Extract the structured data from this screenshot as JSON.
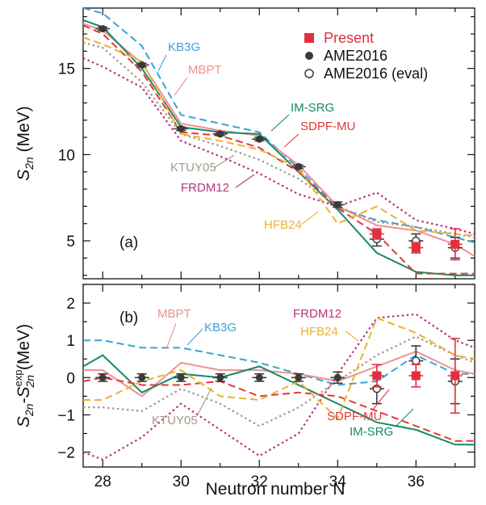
{
  "chart_data": {
    "xlabel": "Neutron number N",
    "xlim": [
      27.5,
      37.5
    ],
    "xticks": [
      28,
      30,
      32,
      34,
      36
    ],
    "legend": {
      "placement": "top-right",
      "entries": [
        {
          "label": "Present",
          "marker": "filled-square",
          "color": "#e03040"
        },
        {
          "label": "AME2016",
          "marker": "filled-circle",
          "color": "#3a3a3a"
        },
        {
          "label": "AME2016 (eval)",
          "marker": "open-circle",
          "color": "#3a3a3a"
        }
      ]
    },
    "colors": {
      "KB3G": "#3aa3d6",
      "MBPT": "#f08f8f",
      "IM-SRG": "#138a68",
      "SDPF-MU": "#e03a3a",
      "KTUY05": "#a39a88",
      "FRDM12": "#b8337a",
      "HFB24": "#ecb22e",
      "Present": "#e03040",
      "AME2016": "#3a3a3a"
    },
    "panels": [
      {
        "id": "a",
        "type": "line",
        "tag": "(a)",
        "ylabel_main": "S",
        "ylabel_sub": "2n",
        "ylabel_unit": " (MeV)",
        "ylim": [
          2.8,
          18.5
        ],
        "yticks": [
          5,
          10,
          15
        ],
        "series": [
          {
            "name": "KB3G",
            "style": "dashed",
            "x": [
              27.5,
              28,
              29,
              30,
              31,
              32,
              33,
              34,
              35,
              36,
              37,
              37.5
            ],
            "y": [
              18.5,
              18.2,
              16.3,
              12.3,
              11.8,
              11.3,
              9.2,
              6.9,
              6.2,
              5.8,
              5.2,
              4.9
            ]
          },
          {
            "name": "MBPT",
            "style": "solid",
            "x": [
              27.5,
              28,
              29,
              30,
              31,
              32,
              33,
              34,
              35,
              36,
              37,
              37.5
            ],
            "y": [
              17.6,
              17.2,
              15.3,
              11.8,
              11.4,
              11.1,
              9.4,
              7.0,
              5.9,
              5.6,
              4.8,
              4.1
            ]
          },
          {
            "name": "IM-SRG",
            "style": "solid",
            "x": [
              27.5,
              28,
              29,
              30,
              31,
              32,
              33,
              34,
              35,
              36,
              37,
              37.5
            ],
            "y": [
              17.8,
              17.4,
              15.0,
              11.6,
              11.3,
              11.2,
              9.0,
              6.8,
              4.3,
              3.2,
              3.0,
              3.0
            ]
          },
          {
            "name": "SDPF-MU",
            "style": "dashed",
            "x": [
              27.5,
              28,
              29,
              30,
              31,
              32,
              33,
              34,
              35,
              36,
              37,
              37.5
            ],
            "y": [
              17.5,
              17.0,
              14.8,
              11.3,
              11.1,
              10.4,
              9.0,
              6.9,
              5.4,
              3.1,
              3.1,
              3.1
            ]
          },
          {
            "name": "KTUY05",
            "style": "dotted",
            "x": [
              27.5,
              28,
              29,
              30,
              31,
              32,
              33,
              34,
              35,
              36,
              37,
              37.5
            ],
            "y": [
              16.5,
              16.2,
              14.2,
              11.2,
              10.5,
              9.7,
              8.6,
              7.0,
              6.1,
              5.8,
              5.4,
              5.2
            ]
          },
          {
            "name": "FRDM12",
            "style": "dotted",
            "x": [
              27.5,
              28,
              29,
              30,
              31,
              32,
              33,
              34,
              35,
              36,
              37,
              37.5
            ],
            "y": [
              15.6,
              15.1,
              13.9,
              10.8,
              9.9,
              8.9,
              7.7,
              7.0,
              7.8,
              6.2,
              5.7,
              5.4
            ]
          },
          {
            "name": "HFB24",
            "style": "dashed",
            "x": [
              27.5,
              28,
              29,
              30,
              31,
              32,
              33,
              34,
              35,
              36,
              37,
              37.5
            ],
            "y": [
              16.8,
              16.4,
              15.4,
              11.2,
              10.8,
              10.3,
              9.2,
              6.0,
              7.0,
              5.6,
              5.4,
              5.3
            ]
          }
        ],
        "points": {
          "AME2016": [
            {
              "x": 28,
              "y": 17.3,
              "err": 0.1
            },
            {
              "x": 29,
              "y": 15.2,
              "err": 0.1
            },
            {
              "x": 30,
              "y": 11.5,
              "err": 0.1
            },
            {
              "x": 31,
              "y": 11.2,
              "err": 0.1
            },
            {
              "x": 32,
              "y": 10.9,
              "err": 0.1
            },
            {
              "x": 33,
              "y": 9.3,
              "err": 0.1
            },
            {
              "x": 34,
              "y": 7.1,
              "err": 0.15
            }
          ],
          "AME2016 (eval)": [
            {
              "x": 35,
              "y": 5.1,
              "err": 0.4
            },
            {
              "x": 36,
              "y": 5.0,
              "err": 0.4
            },
            {
              "x": 37,
              "y": 4.6,
              "err": 0.6
            }
          ],
          "Present": [
            {
              "x": 35,
              "y": 5.4,
              "err": 0.3
            },
            {
              "x": 36,
              "y": 4.6,
              "err": 0.3
            },
            {
              "x": 37,
              "y": 4.8,
              "err": 0.9
            }
          ]
        },
        "labels": [
          {
            "text": "KB3G",
            "series": "KB3G"
          },
          {
            "text": "MBPT",
            "series": "MBPT"
          },
          {
            "text": "IM-SRG",
            "series": "IM-SRG"
          },
          {
            "text": "SDPF-MU",
            "series": "SDPF-MU"
          },
          {
            "text": "KTUY05",
            "series": "KTUY05"
          },
          {
            "text": "FRDM12",
            "series": "FRDM12"
          },
          {
            "text": "HFB24",
            "series": "HFB24"
          }
        ]
      },
      {
        "id": "b",
        "type": "line",
        "tag": "(b)",
        "ylabel_main": "S",
        "ylabel_sub": "2n",
        "ylabel_mid": "-S",
        "ylabel_sup2": "exp",
        "ylabel_sub2": "2n",
        "ylabel_unit": " (MeV)",
        "ylim": [
          -2.4,
          2.5
        ],
        "yticks": [
          -2,
          -1,
          0,
          1,
          2
        ],
        "series": [
          {
            "name": "KB3G",
            "style": "dashed",
            "x": [
              27.5,
              28,
              29,
              30,
              31,
              32,
              33,
              34,
              35,
              36,
              37,
              37.5
            ],
            "y": [
              1.0,
              1.0,
              0.8,
              0.8,
              0.6,
              0.4,
              0.1,
              -0.2,
              -0.1,
              0.6,
              0.1,
              0.1
            ]
          },
          {
            "name": "MBPT",
            "style": "solid",
            "x": [
              27.5,
              28,
              29,
              30,
              31,
              32,
              33,
              34,
              35,
              36,
              37,
              37.5
            ],
            "y": [
              0.2,
              0.2,
              -0.5,
              0.4,
              0.2,
              0.2,
              0.1,
              -0.1,
              0.3,
              0.7,
              0.2,
              0.1
            ]
          },
          {
            "name": "IM-SRG",
            "style": "solid",
            "x": [
              27.5,
              28,
              29,
              30,
              31,
              32,
              33,
              34,
              35,
              36,
              37,
              37.5
            ],
            "y": [
              0.3,
              0.6,
              -0.4,
              0.1,
              0.0,
              0.3,
              -0.2,
              -0.7,
              -1.2,
              -1.4,
              -1.8,
              -1.8
            ]
          },
          {
            "name": "SDPF-MU",
            "style": "dashed",
            "x": [
              27.5,
              28,
              29,
              30,
              31,
              32,
              33,
              34,
              35,
              36,
              37,
              37.5
            ],
            "y": [
              -0.1,
              0.0,
              -0.2,
              -0.2,
              -0.1,
              -0.5,
              -0.4,
              -0.5,
              -0.9,
              -1.3,
              -1.7,
              -1.7
            ]
          },
          {
            "name": "KTUY05",
            "style": "dotted",
            "x": [
              27.5,
              28,
              29,
              30,
              31,
              32,
              33,
              34,
              35,
              36,
              37,
              37.5
            ],
            "y": [
              -0.8,
              -0.8,
              -0.9,
              -0.3,
              -0.7,
              -1.3,
              -0.8,
              -0.1,
              0.6,
              1.1,
              0.6,
              0.4
            ]
          },
          {
            "name": "FRDM12",
            "style": "dotted",
            "x": [
              27.5,
              28,
              29,
              30,
              31,
              32,
              33,
              34,
              35,
              36,
              37,
              37.5
            ],
            "y": [
              -2.0,
              -2.2,
              -1.6,
              -0.7,
              -1.4,
              -2.1,
              -1.5,
              0.1,
              1.6,
              1.7,
              1.0,
              0.8
            ]
          },
          {
            "name": "HFB24",
            "style": "dashed",
            "x": [
              27.5,
              28,
              29,
              30,
              31,
              32,
              33,
              34,
              35,
              36,
              37,
              37.5
            ],
            "y": [
              -0.6,
              -0.6,
              -0.1,
              0.2,
              -0.5,
              -0.6,
              -0.1,
              -1.1,
              1.6,
              1.2,
              0.6,
              0.5
            ]
          }
        ],
        "points": {
          "AME2016": [
            {
              "x": 28,
              "y": 0.0,
              "err": 0.1
            },
            {
              "x": 29,
              "y": 0.0,
              "err": 0.1
            },
            {
              "x": 30,
              "y": 0.0,
              "err": 0.1
            },
            {
              "x": 31,
              "y": 0.0,
              "err": 0.1
            },
            {
              "x": 32,
              "y": 0.0,
              "err": 0.1
            },
            {
              "x": 33,
              "y": 0.0,
              "err": 0.1
            },
            {
              "x": 34,
              "y": 0.0,
              "err": 0.15
            }
          ],
          "AME2016 (eval)": [
            {
              "x": 35,
              "y": -0.3,
              "err": 0.4
            },
            {
              "x": 36,
              "y": 0.45,
              "err": 0.4
            },
            {
              "x": 37,
              "y": -0.1,
              "err": 0.6
            }
          ],
          "Present": [
            {
              "x": 35,
              "y": 0.05,
              "err": 0.3
            },
            {
              "x": 36,
              "y": 0.05,
              "err": 0.3
            },
            {
              "x": 37,
              "y": 0.05,
              "err": 1.0
            }
          ]
        },
        "labels": [
          {
            "text": "MBPT",
            "series": "MBPT"
          },
          {
            "text": "KB3G",
            "series": "KB3G"
          },
          {
            "text": "KTUY05",
            "series": "KTUY05"
          },
          {
            "text": "FRDM12",
            "series": "FRDM12"
          },
          {
            "text": "HFB24",
            "series": "HFB24"
          },
          {
            "text": "SDPF-MU",
            "series": "SDPF-MU"
          },
          {
            "text": "IM-SRG",
            "series": "IM-SRG"
          }
        ]
      }
    ]
  }
}
